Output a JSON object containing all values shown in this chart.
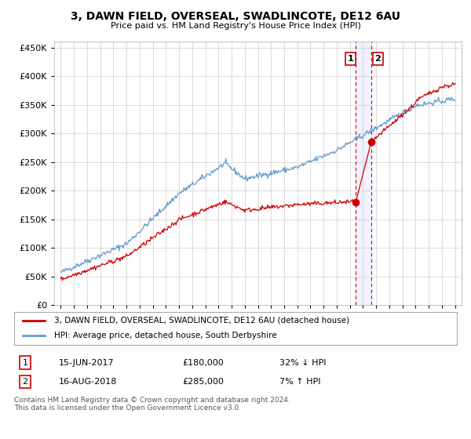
{
  "title": "3, DAWN FIELD, OVERSEAL, SWADLINCOTE, DE12 6AU",
  "subtitle": "Price paid vs. HM Land Registry's House Price Index (HPI)",
  "ylim": [
    0,
    460000
  ],
  "yticks": [
    0,
    50000,
    100000,
    150000,
    200000,
    250000,
    300000,
    350000,
    400000,
    450000
  ],
  "legend_line1": "3, DAWN FIELD, OVERSEAL, SWADLINCOTE, DE12 6AU (detached house)",
  "legend_line2": "HPI: Average price, detached house, South Derbyshire",
  "annotation1_date": "15-JUN-2017",
  "annotation1_price": "£180,000",
  "annotation1_hpi": "32% ↓ HPI",
  "annotation2_date": "16-AUG-2018",
  "annotation2_price": "£285,000",
  "annotation2_hpi": "7% ↑ HPI",
  "footnote": "Contains HM Land Registry data © Crown copyright and database right 2024.\nThis data is licensed under the Open Government Licence v3.0.",
  "line_color_property": "#cc0000",
  "line_color_hpi": "#6699cc",
  "sale1_x": 2017.45,
  "sale1_y": 180000,
  "sale2_x": 2018.62,
  "sale2_y": 285000,
  "vline1_x": 2017.45,
  "vline2_x": 2018.62,
  "background_color": "#ffffff",
  "grid_color": "#cccccc",
  "xlim_left": 1994.5,
  "xlim_right": 2025.5
}
